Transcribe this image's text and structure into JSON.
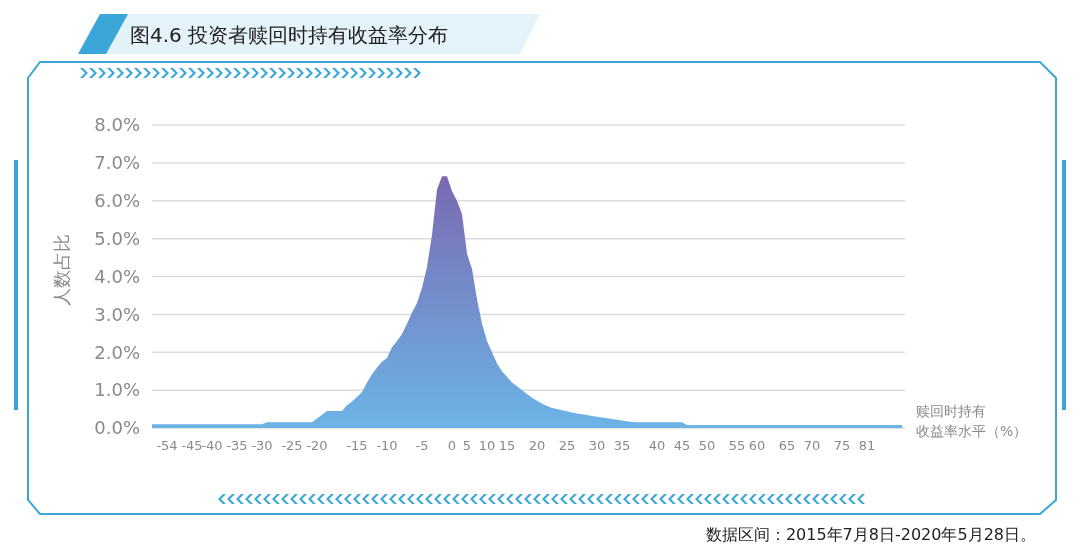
{
  "chart_data": {
    "type": "area",
    "title": "图4.6  投资者赎回时持有收益率分布",
    "ylabel": "人数占比",
    "xlabel": "赎回时持有收益率水平（%）",
    "annotations": [
      "数据区间：2015年7月8日-2020年5月28日。"
    ],
    "categories": [
      null,
      null,
      null,
      "-54",
      null,
      null,
      null,
      null,
      "-45",
      null,
      null,
      null,
      "-40",
      null,
      null,
      null,
      null,
      "-35",
      null,
      null,
      null,
      null,
      "-30",
      null,
      null,
      null,
      null,
      null,
      "-25",
      null,
      null,
      null,
      null,
      "-20",
      null,
      null,
      null,
      null,
      null,
      null,
      null,
      "-15",
      null,
      null,
      null,
      null,
      null,
      "-10",
      null,
      null,
      null,
      null,
      null,
      null,
      "-5",
      null,
      null,
      null,
      null,
      null,
      "0",
      null,
      null,
      "5",
      null,
      null,
      null,
      "10",
      null,
      null,
      null,
      "15",
      null,
      null,
      null,
      null,
      null,
      "20",
      null,
      null,
      null,
      null,
      null,
      "25",
      null,
      null,
      null,
      null,
      null,
      "30",
      null,
      null,
      null,
      null,
      "35",
      null,
      null,
      null,
      null,
      null,
      null,
      "40",
      null,
      null,
      null,
      null,
      "45",
      null,
      null,
      null,
      null,
      "50",
      null,
      null,
      null,
      null,
      null,
      "55",
      null,
      null,
      null,
      "60",
      null,
      null,
      null,
      null,
      null,
      "65",
      null,
      null,
      null,
      null,
      "70",
      null,
      null,
      null,
      null,
      null,
      "75",
      null,
      null,
      null,
      null,
      "81",
      null,
      null,
      null,
      null,
      null,
      null,
      null
    ],
    "series": [
      {
        "color": "#6cb4e6",
        "values": [
          0.1,
          0.1,
          0.1,
          0.1,
          0.1,
          0.1,
          0.1,
          0.1,
          0.1,
          0.1,
          0.1,
          0.1,
          0.1,
          0.1,
          0.1,
          0.1,
          0.1,
          0.1,
          0.1,
          0.1,
          0.1,
          0.1,
          0.1,
          0.15,
          0.15,
          0.15,
          0.15,
          0.15,
          0.15,
          0.15,
          0.15,
          0.15,
          0.15,
          0.25,
          0.35,
          0.45,
          0.45,
          0.45,
          0.45,
          0.6,
          0.7,
          0.82,
          0.95,
          1.2,
          1.42,
          1.6,
          1.75,
          1.85,
          2.13,
          2.3,
          2.48,
          2.75,
          3.05,
          3.3,
          3.7,
          4.25,
          5.1,
          6.3,
          6.65,
          6.65,
          6.25,
          6.0,
          5.65,
          4.6,
          4.2,
          3.4,
          2.75,
          2.3,
          2.0,
          1.7,
          1.5,
          1.35,
          1.2,
          1.1,
          1.0,
          0.9,
          0.8,
          0.72,
          0.65,
          0.58,
          0.53,
          0.5,
          0.47,
          0.44,
          0.41,
          0.38,
          0.36,
          0.34,
          0.32,
          0.3,
          0.28,
          0.26,
          0.24,
          0.22,
          0.2,
          0.18,
          0.16,
          0.15,
          0.15,
          0.15,
          0.15,
          0.15,
          0.15,
          0.15,
          0.15,
          0.15,
          0.15,
          0.08,
          0.08,
          0.08,
          0.08,
          0.08,
          0.08,
          0.08,
          0.08,
          0.08,
          0.08,
          0.08,
          0.08,
          0.08,
          0.08,
          0.08,
          0.08,
          0.08,
          0.08,
          0.08,
          0.08,
          0.08,
          0.08,
          0.08,
          0.08,
          0.08,
          0.08,
          0.08,
          0.08,
          0.08,
          0.08,
          0.08,
          0.08,
          0.08,
          0.08,
          0.08,
          0.08,
          0.08,
          0.08,
          0.08,
          0.08,
          0.08,
          0.08,
          0.08,
          0.08
        ]
      }
    ],
    "ylim": [
      0,
      8
    ],
    "yticks": [
      {
        "value": 0,
        "label": "0.0%"
      },
      {
        "value": 1,
        "label": "1.0%"
      },
      {
        "value": 2,
        "label": "2.0%"
      },
      {
        "value": 3,
        "label": "3.0%"
      },
      {
        "value": 4,
        "label": "4.0%"
      },
      {
        "value": 5,
        "label": "5.0%"
      },
      {
        "value": 6,
        "label": "6.0%"
      },
      {
        "value": 7,
        "label": "7.0%"
      },
      {
        "value": 8,
        "label": "8.0%"
      }
    ],
    "grid": "y"
  }
}
